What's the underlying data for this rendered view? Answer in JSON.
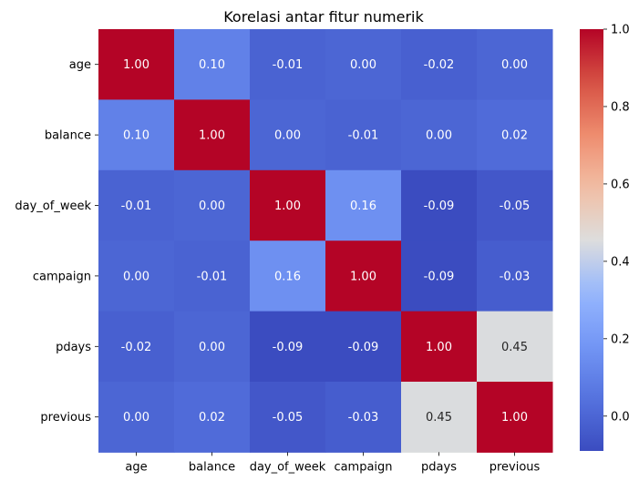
{
  "chart_data": {
    "type": "heatmap",
    "title": "Korelasi antar fitur numerik",
    "row_labels": [
      "age",
      "balance",
      "day_of_week",
      "campaign",
      "pdays",
      "previous"
    ],
    "col_labels": [
      "age",
      "balance",
      "day_of_week",
      "campaign",
      "pdays",
      "previous"
    ],
    "values": [
      [
        1.0,
        0.1,
        -0.01,
        0.0,
        -0.02,
        0.0
      ],
      [
        0.1,
        1.0,
        0.0,
        -0.01,
        0.0,
        0.02
      ],
      [
        -0.01,
        0.0,
        1.0,
        0.16,
        -0.09,
        -0.05
      ],
      [
        0.0,
        -0.01,
        0.16,
        1.0,
        -0.09,
        -0.03
      ],
      [
        -0.02,
        0.0,
        -0.09,
        -0.09,
        1.0,
        0.45
      ],
      [
        0.0,
        0.02,
        -0.05,
        -0.03,
        0.45,
        1.0
      ]
    ],
    "cell_labels": [
      [
        "1.00",
        "0.10",
        "-0.01",
        "0.00",
        "-0.02",
        "0.00"
      ],
      [
        "0.10",
        "1.00",
        "0.00",
        "-0.01",
        "0.00",
        "0.02"
      ],
      [
        "-0.01",
        "0.00",
        "1.00",
        "0.16",
        "-0.09",
        "-0.05"
      ],
      [
        "0.00",
        "-0.01",
        "0.16",
        "1.00",
        "-0.09",
        "-0.03"
      ],
      [
        "-0.02",
        "0.00",
        "-0.09",
        "-0.09",
        "1.00",
        "0.45"
      ],
      [
        "0.00",
        "0.02",
        "-0.05",
        "-0.03",
        "0.45",
        "1.00"
      ]
    ],
    "colormap": "coolwarm",
    "color_range": [
      -0.09,
      1.0
    ],
    "colorbar_ticks": [
      -0.0,
      0.2,
      0.4,
      0.6,
      0.8,
      1.0
    ],
    "colorbar_tick_labels": [
      "0.0",
      "0.2",
      "0.4",
      "0.6",
      "0.8",
      "1.0"
    ],
    "grid": false,
    "legend": "colorbar-right"
  }
}
